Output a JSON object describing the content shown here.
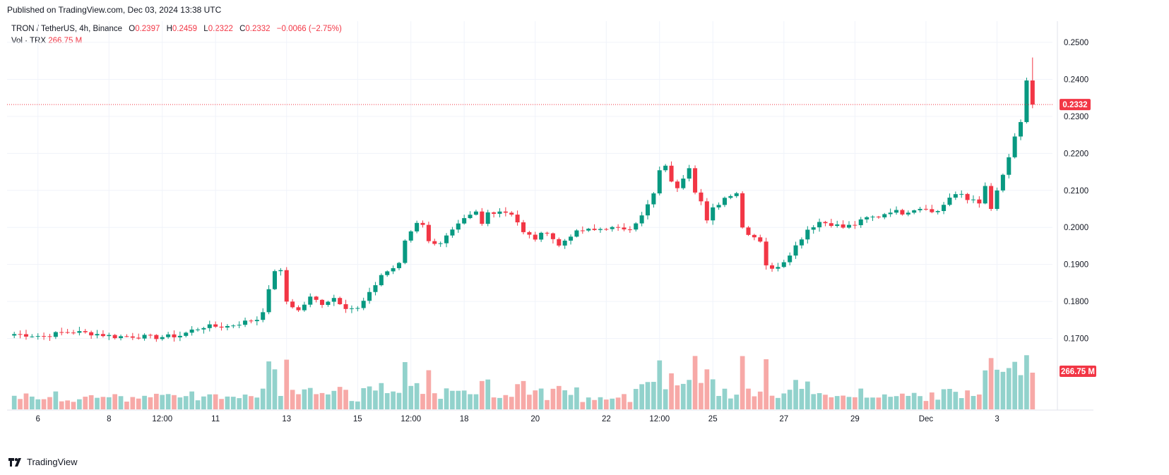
{
  "header": {
    "published": "Published on TradingView.com, Dec 03, 2024 13:38 UTC"
  },
  "legend": {
    "symbol": "TRON / TetherUS, 4h, Binance",
    "open_label": "O",
    "open": "0.2397",
    "high_label": "H",
    "high": "0.2459",
    "low_label": "L",
    "low": "0.2322",
    "close_label": "C",
    "close": "0.2332",
    "change": "−0.0066 (−2.75%)",
    "vol_label": "Vol · TRX",
    "vol_value": "266.75 M"
  },
  "brand": {
    "name": "TradingView",
    "icon": "tradingview-logo-icon"
  },
  "colors": {
    "up": "#089981",
    "down": "#f23645",
    "up_vol": "#92d2cc",
    "down_vol": "#f7a9a7",
    "grid": "#f0f3fa"
  },
  "chart_data": {
    "type": "candlestick",
    "ylim": [
      0.16,
      0.25
    ],
    "price_ticks": [
      "0.2500",
      "0.2400",
      "0.2300",
      "0.2200",
      "0.2100",
      "0.2000",
      "0.1900",
      "0.1800",
      "0.1700"
    ],
    "price_tick_values": [
      0.25,
      0.24,
      0.23,
      0.22,
      0.21,
      0.2,
      0.19,
      0.18,
      0.17
    ],
    "last_price": "0.2332",
    "last_price_value": 0.2332,
    "last_volume": "266.75 M",
    "x_ticks": [
      "6",
      "8",
      "12:00",
      "11",
      "13",
      "15",
      "12:00",
      "18",
      "20",
      "22",
      "12:00",
      "25",
      "27",
      "29",
      "Dec",
      "3"
    ],
    "x_tick_bars": [
      4,
      16,
      25,
      34,
      46,
      58,
      67,
      76,
      88,
      100,
      109,
      118,
      130,
      142,
      154,
      166
    ],
    "close_path": [
      [
        0,
        0.1712
      ],
      [
        5,
        0.1706
      ],
      [
        8,
        0.1716
      ],
      [
        10,
        0.1718
      ],
      [
        14,
        0.1712
      ],
      [
        17,
        0.1705
      ],
      [
        20,
        0.1706
      ],
      [
        24,
        0.1703
      ],
      [
        28,
        0.1708
      ],
      [
        30,
        0.1722
      ],
      [
        32,
        0.1732
      ],
      [
        36,
        0.1733
      ],
      [
        39,
        0.1745
      ],
      [
        41,
        0.1752
      ],
      [
        42,
        0.1776
      ],
      [
        43,
        0.1828
      ],
      [
        44,
        0.1885
      ],
      [
        45,
        0.188
      ],
      [
        46,
        0.18
      ],
      [
        48,
        0.1775
      ],
      [
        50,
        0.181
      ],
      [
        52,
        0.1795
      ],
      [
        54,
        0.181
      ],
      [
        56,
        0.1785
      ],
      [
        58,
        0.178
      ],
      [
        60,
        0.182
      ],
      [
        62,
        0.1872
      ],
      [
        65,
        0.19
      ],
      [
        66,
        0.1965
      ],
      [
        68,
        0.2015
      ],
      [
        69,
        0.201
      ],
      [
        70,
        0.196
      ],
      [
        72,
        0.196
      ],
      [
        74,
        0.199
      ],
      [
        76,
        0.202
      ],
      [
        78,
        0.204
      ],
      [
        79,
        0.2008
      ],
      [
        80,
        0.204
      ],
      [
        82,
        0.2045
      ],
      [
        84,
        0.2038
      ],
      [
        85,
        0.2015
      ],
      [
        86,
        0.1985
      ],
      [
        88,
        0.197
      ],
      [
        90,
        0.199
      ],
      [
        92,
        0.195
      ],
      [
        94,
        0.198
      ],
      [
        96,
        0.1992
      ],
      [
        98,
        0.1992
      ],
      [
        100,
        0.2
      ],
      [
        102,
        0.1995
      ],
      [
        104,
        0.2
      ],
      [
        106,
        0.203
      ],
      [
        108,
        0.209
      ],
      [
        109,
        0.215
      ],
      [
        110,
        0.217
      ],
      [
        111,
        0.212
      ],
      [
        112,
        0.211
      ],
      [
        114,
        0.2165
      ],
      [
        115,
        0.21
      ],
      [
        116,
        0.207
      ],
      [
        117,
        0.2015
      ],
      [
        118,
        0.205
      ],
      [
        120,
        0.208
      ],
      [
        121,
        0.209
      ],
      [
        122,
        0.2095
      ],
      [
        123,
        0.2
      ],
      [
        124,
        0.1985
      ],
      [
        126,
        0.1965
      ],
      [
        127,
        0.19
      ],
      [
        128,
        0.1885
      ],
      [
        130,
        0.191
      ],
      [
        132,
        0.195
      ],
      [
        134,
        0.1995
      ],
      [
        136,
        0.2015
      ],
      [
        138,
        0.201
      ],
      [
        140,
        0.2
      ],
      [
        142,
        0.2008
      ],
      [
        144,
        0.2025
      ],
      [
        146,
        0.203
      ],
      [
        148,
        0.2045
      ],
      [
        150,
        0.204
      ],
      [
        152,
        0.205
      ],
      [
        154,
        0.2055
      ],
      [
        155,
        0.204
      ],
      [
        156,
        0.2045
      ],
      [
        158,
        0.208
      ],
      [
        160,
        0.209
      ],
      [
        161,
        0.2075
      ],
      [
        162,
        0.208
      ],
      [
        163,
        0.206
      ],
      [
        164,
        0.211
      ],
      [
        165,
        0.205
      ],
      [
        166,
        0.2095
      ],
      [
        167,
        0.214
      ],
      [
        168,
        0.219
      ],
      [
        169,
        0.224
      ],
      [
        170,
        0.228
      ],
      [
        171,
        0.2397
      ],
      [
        172,
        0.2332
      ]
    ],
    "volume_scale_max": 400
  }
}
